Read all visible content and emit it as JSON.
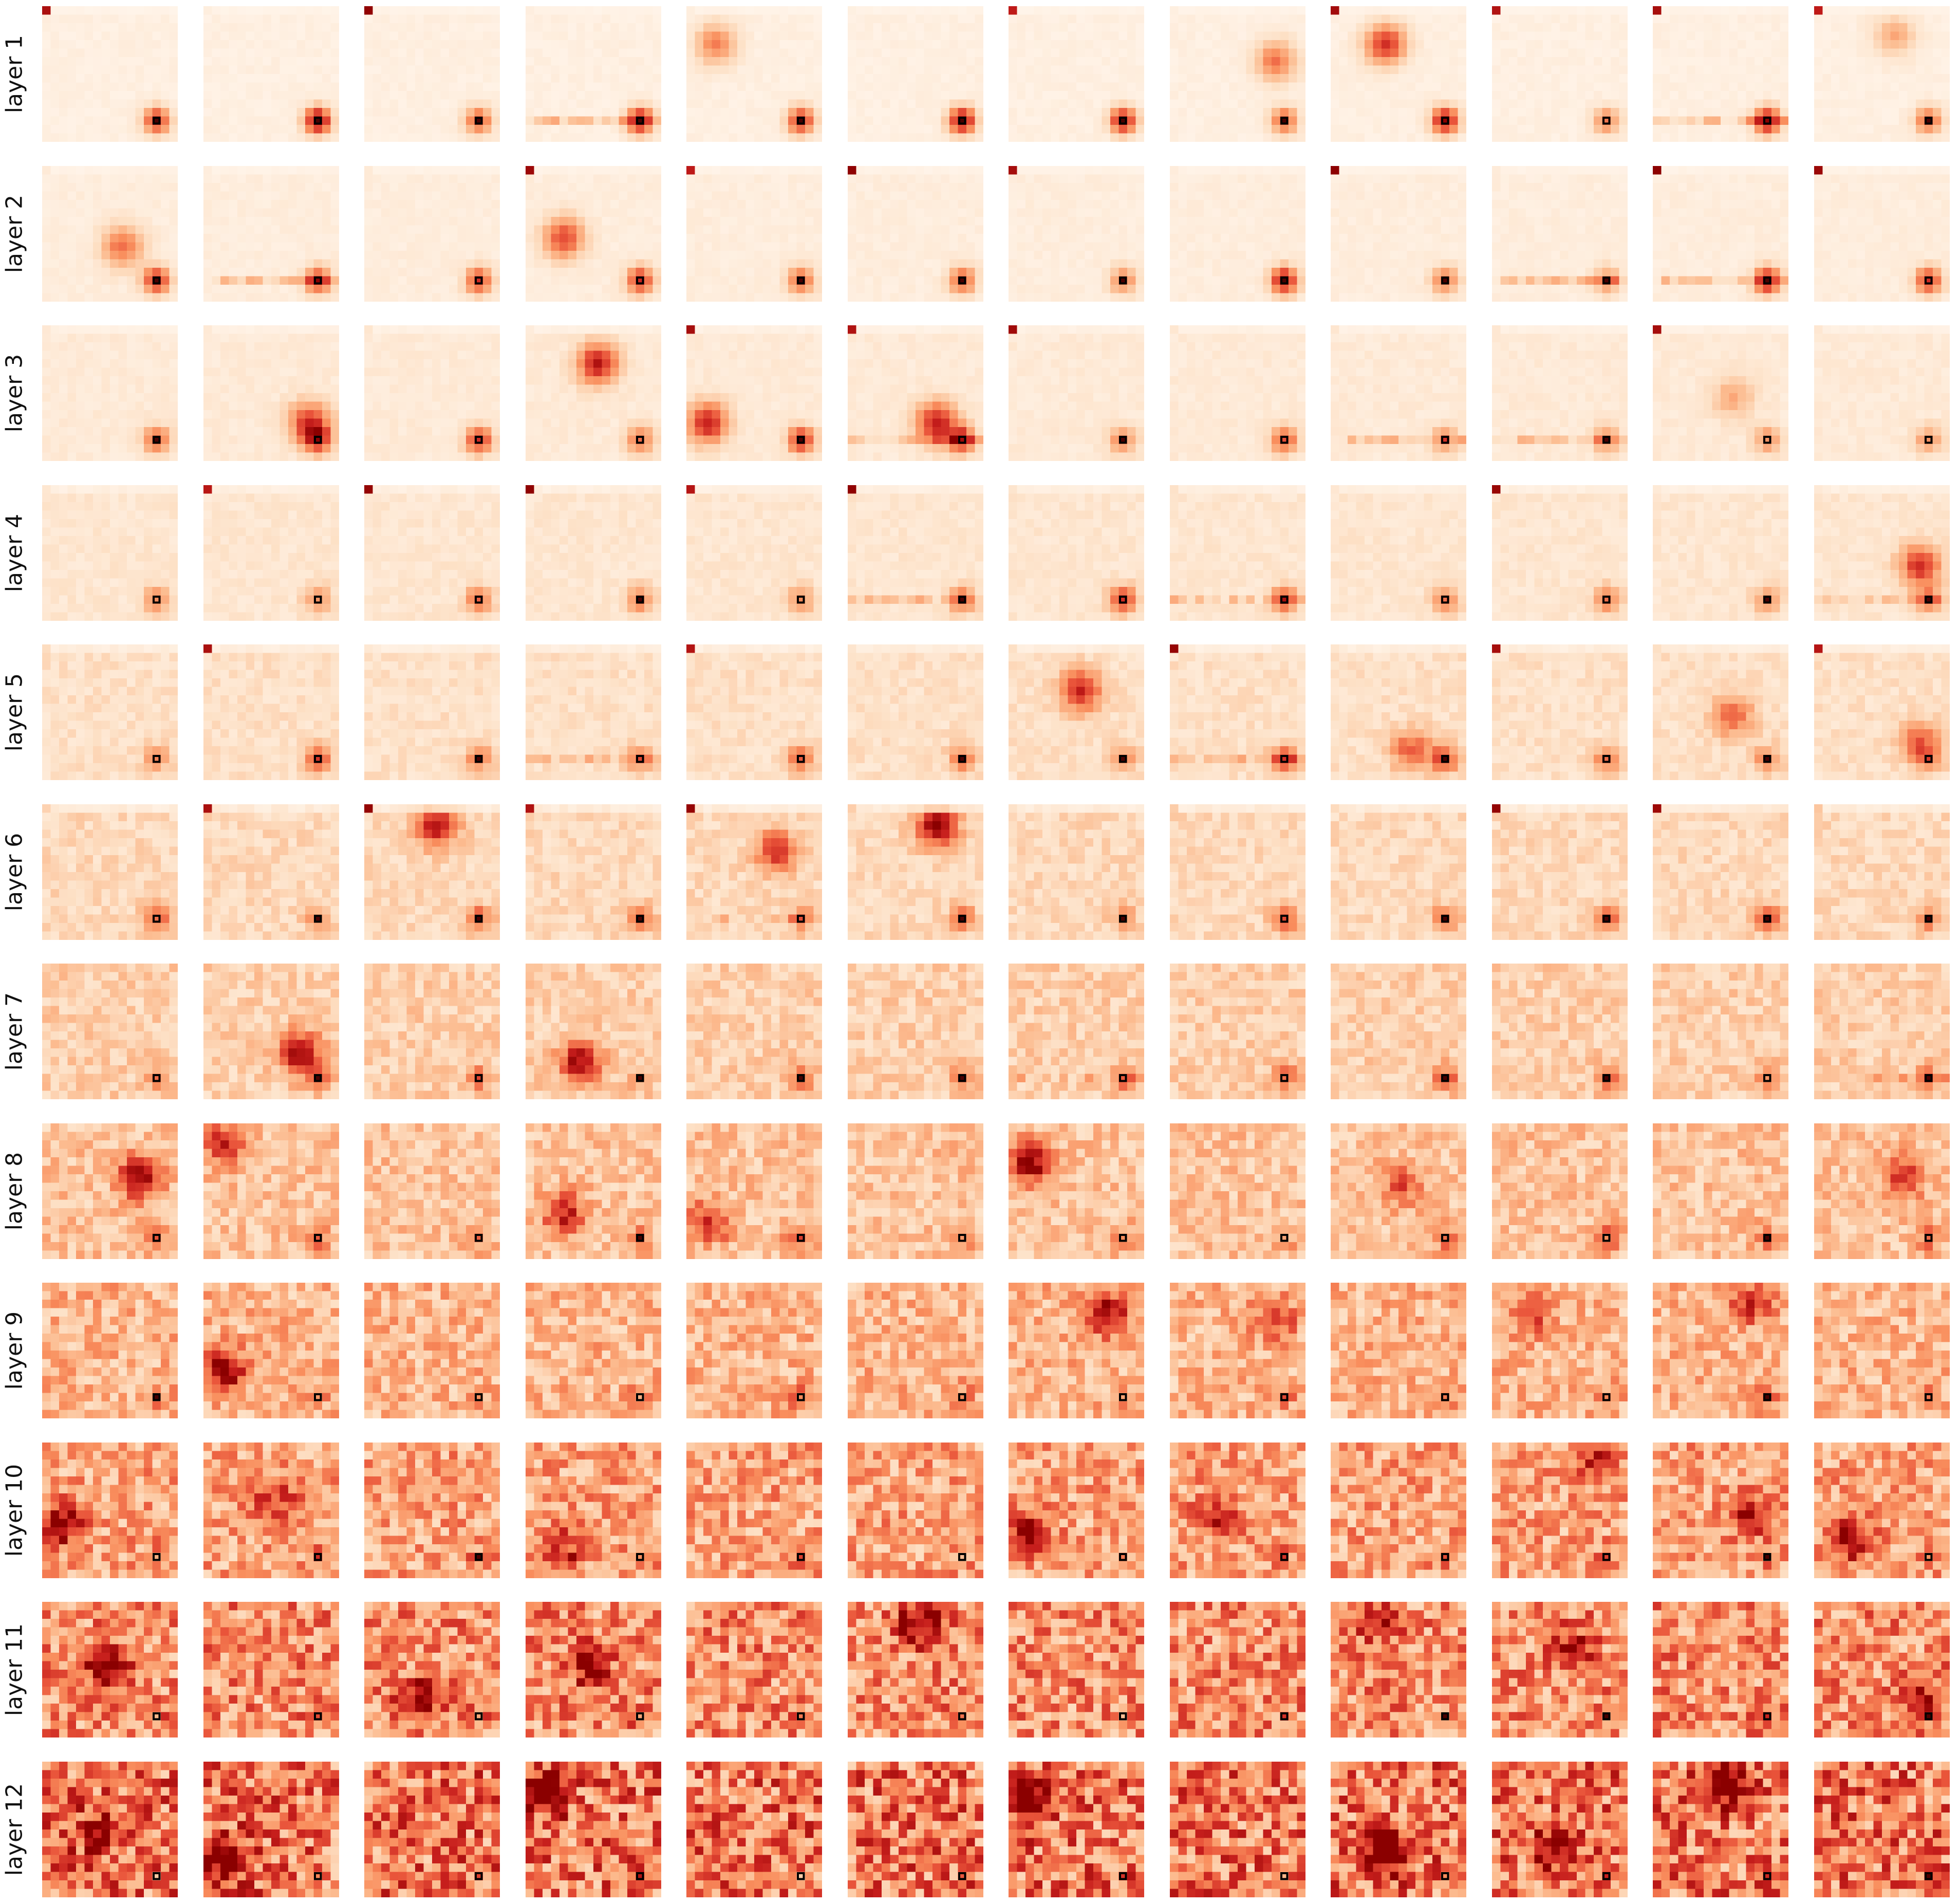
{
  "figure": {
    "rows": 12,
    "columns": 12,
    "grid_cells_per_panel": 16,
    "colormap": [
      "#fff5eb",
      "#fde0c5",
      "#fcbb8f",
      "#f98e5d",
      "#e9543a",
      "#c61e1c",
      "#8b0000"
    ],
    "highlight_patch": {
      "row": 13,
      "col": 13
    },
    "row_labels": [
      "layer 1",
      "layer 2",
      "layer 3",
      "layer 4",
      "layer 5",
      "layer 6",
      "layer 7",
      "layer 8",
      "layer 9",
      "layer 10",
      "layer 11",
      "layer 12"
    ]
  }
}
